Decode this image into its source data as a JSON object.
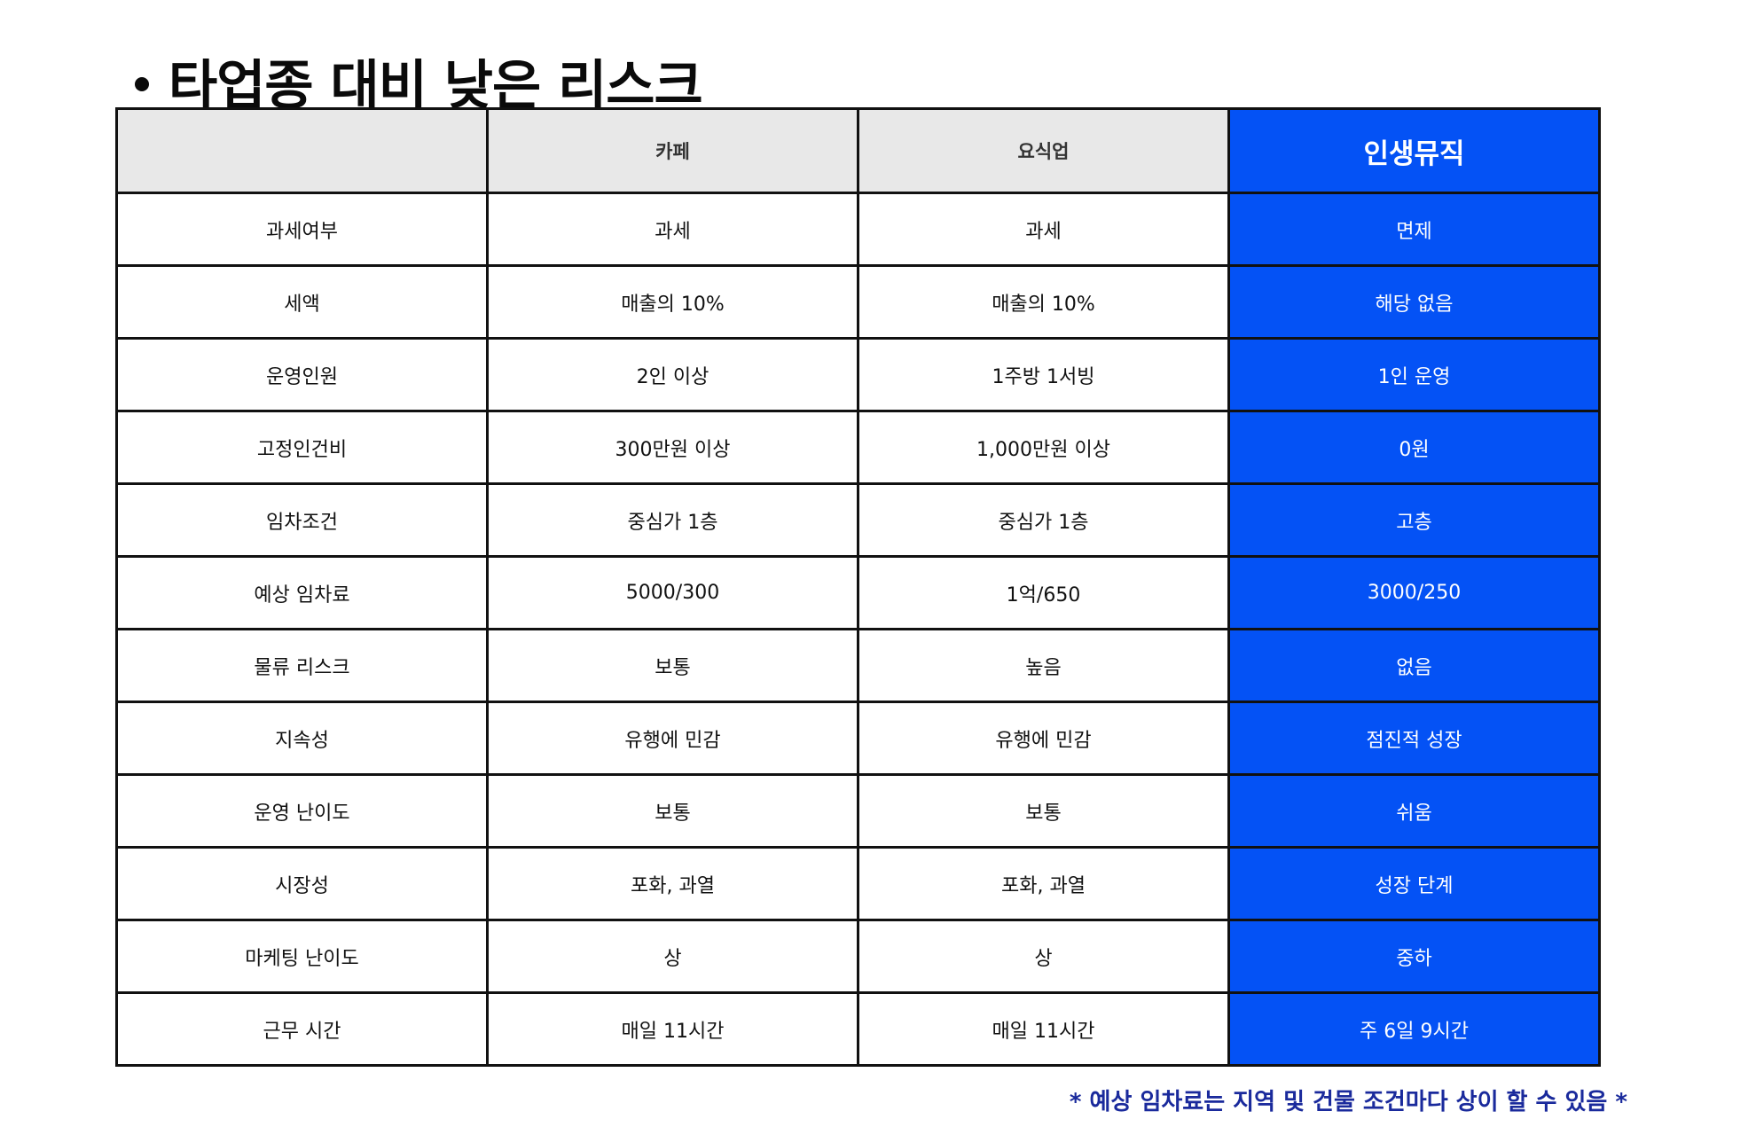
{
  "title": "타업종 대비 낮은 리스크",
  "table": {
    "headers": [
      "",
      "카페",
      "요식업",
      "인생뮤직"
    ],
    "rows": [
      [
        "과세여부",
        "과세",
        "과세",
        "면제"
      ],
      [
        "세액",
        "매출의 10%",
        "매출의 10%",
        "해당 없음"
      ],
      [
        "운영인원",
        "2인 이상",
        "1주방 1서빙",
        "1인 운영"
      ],
      [
        "고정인건비",
        "300만원 이상",
        "1,000만원 이상",
        "0원"
      ],
      [
        "임차조건",
        "중심가 1층",
        "중심가 1층",
        "고층"
      ],
      [
        "예상 임차료",
        "5000/300",
        "1억/650",
        "3000/250"
      ],
      [
        "물류 리스크",
        "보통",
        "높음",
        "없음"
      ],
      [
        "지속성",
        "유행에 민감",
        "유행에 민감",
        "점진적 성장"
      ],
      [
        "운영 난이도",
        "보통",
        "보통",
        "쉬움"
      ],
      [
        "시장성",
        "포화, 과열",
        "포화, 과열",
        "성장 단계"
      ],
      [
        "마케팅 난이도",
        "상",
        "상",
        "중하"
      ],
      [
        "근무 시간",
        "매일 11시간",
        "매일 11시간",
        "주 6일 9시간"
      ]
    ]
  },
  "footnote": "* 예상 임차료는 지역 및 건물 조건마다 상이 할 수 있음 *",
  "colors": {
    "highlight": "#0452f5",
    "header_bg": "#e8e8e8",
    "footnote": "#1a2a9c"
  }
}
